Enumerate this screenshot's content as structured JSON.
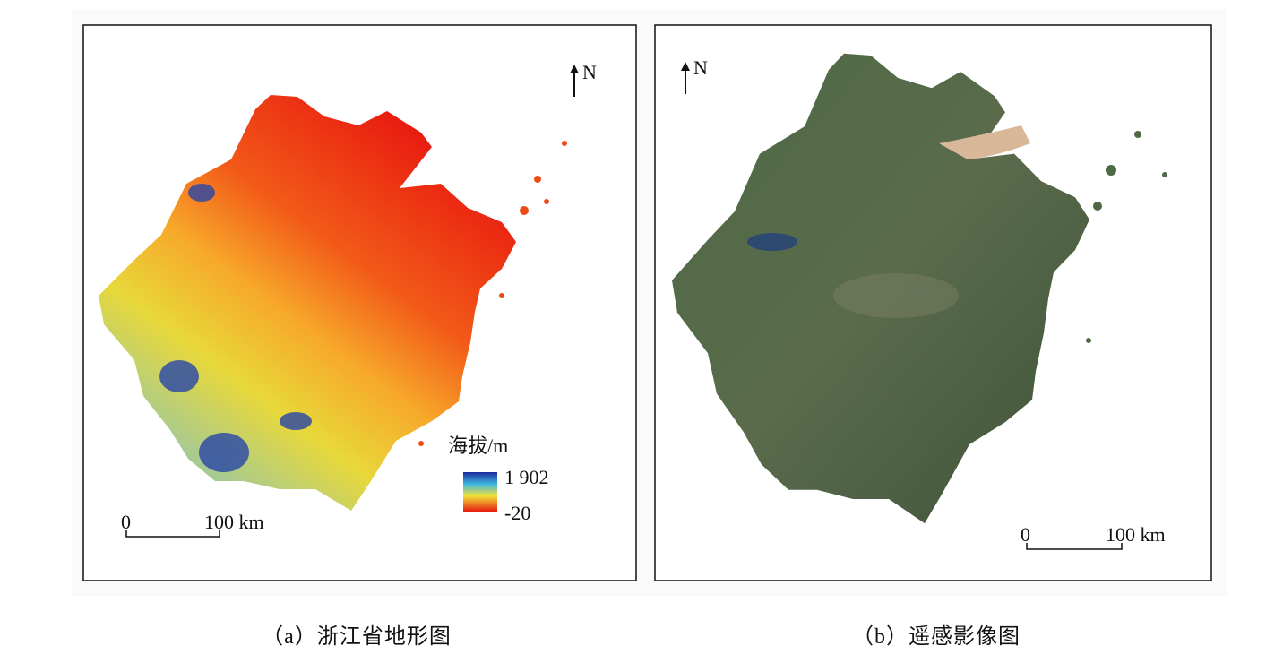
{
  "panel_a": {
    "north": "N",
    "legend_title": "海拔/m",
    "legend_max": "1 902",
    "legend_min": "-20",
    "scale_start": "0",
    "scale_end": "100 km",
    "caption": "（a）浙江省地形图"
  },
  "panel_b": {
    "north": "N",
    "scale_start": "0",
    "scale_end": "100 km",
    "caption": "（b）遥感影像图"
  }
}
